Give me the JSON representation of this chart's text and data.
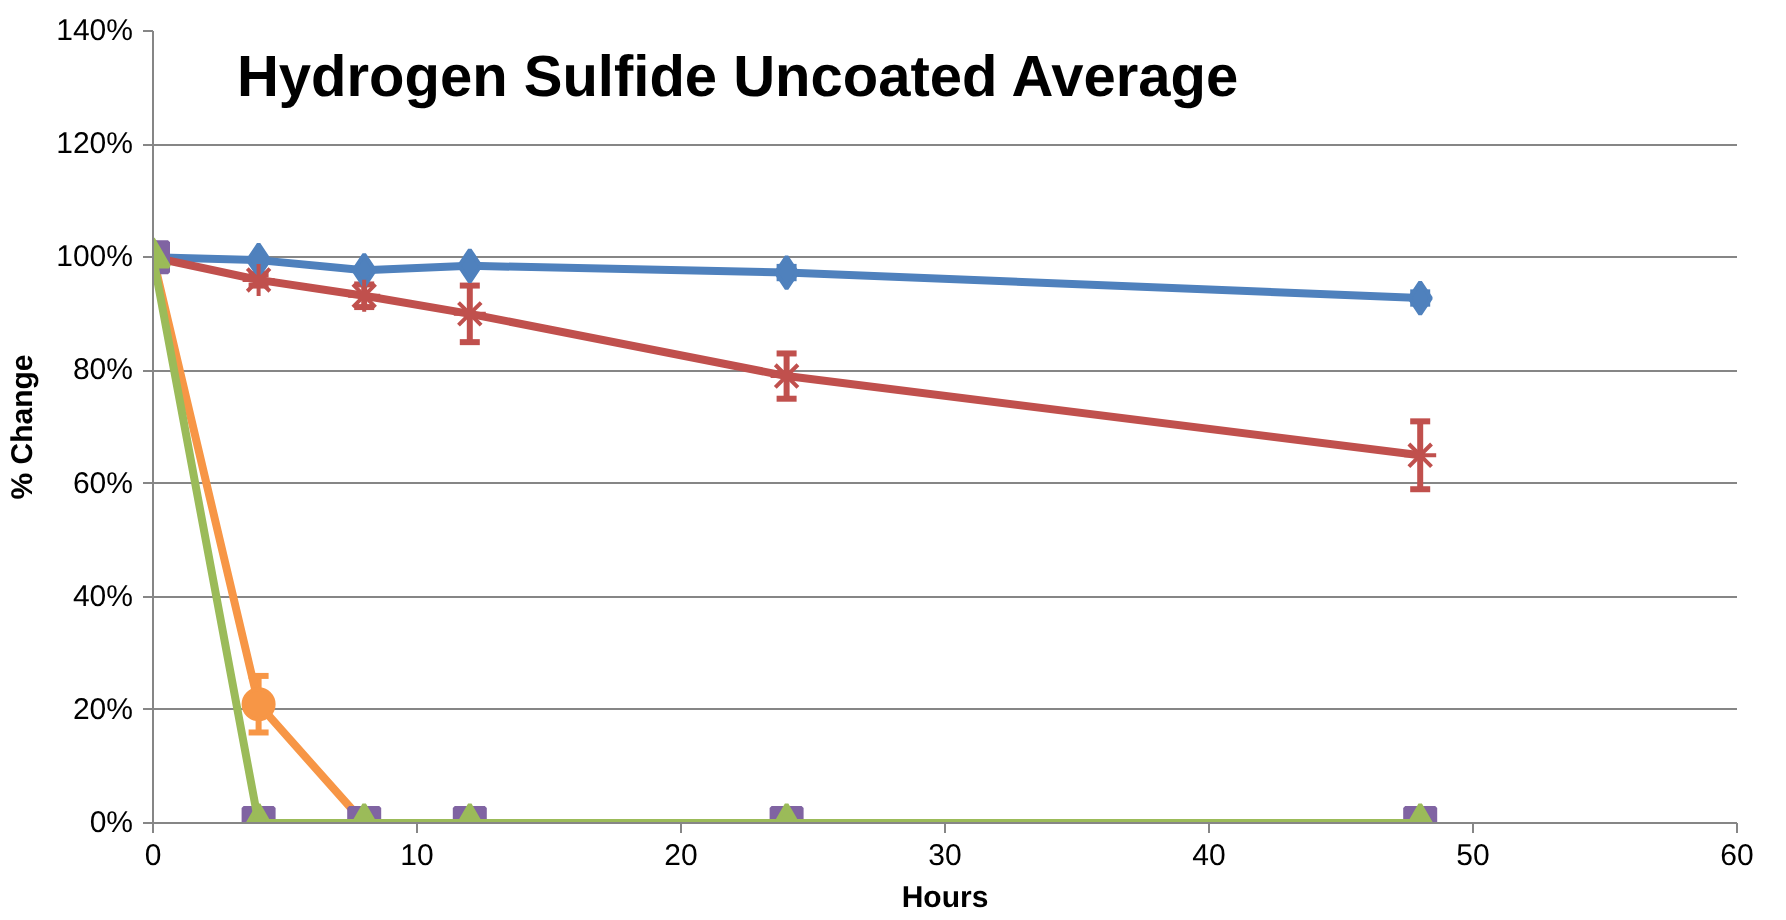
{
  "chart_data": {
    "type": "line",
    "title": "Hydrogen Sulfide Uncoated Average",
    "xlabel": "Hours",
    "ylabel": "% Change",
    "x": [
      0,
      4,
      8,
      12,
      24,
      48
    ],
    "series": [
      {
        "color": "#4f81bd",
        "marker": "diamond",
        "values": [
          100,
          99.5,
          97.7,
          98.5,
          97.3,
          92.8
        ],
        "errors": [
          null,
          null,
          null,
          null,
          1,
          1
        ]
      },
      {
        "color": "#c0504d",
        "marker": "cross",
        "values": [
          100,
          96,
          93.2,
          90,
          79,
          65
        ],
        "errors": [
          null,
          1,
          2,
          5,
          4,
          6
        ]
      },
      {
        "color": "#f79646",
        "marker": "circle",
        "values": [
          100,
          21,
          0,
          null,
          null,
          null
        ],
        "errors": [
          null,
          5,
          null,
          null,
          null,
          null
        ]
      },
      {
        "type": "scatter",
        "color": "#8064a2",
        "marker": "square",
        "values": [
          100,
          0,
          0,
          0,
          0,
          0
        ]
      },
      {
        "color": "#9bbb59",
        "marker": "triangle",
        "values": [
          100,
          0,
          0,
          0,
          0,
          0
        ]
      }
    ],
    "xlim": [
      0,
      60
    ],
    "xticks": [
      0,
      10,
      20,
      30,
      40,
      50,
      60
    ],
    "ylim": [
      0,
      140
    ],
    "yticks": [
      {
        "value": 0,
        "label": "0%"
      },
      {
        "value": 20,
        "label": "20%"
      },
      {
        "value": 40,
        "label": "40%"
      },
      {
        "value": 60,
        "label": "60%"
      },
      {
        "value": 80,
        "label": "80%"
      },
      {
        "value": 100,
        "label": "100%"
      },
      {
        "value": 120,
        "label": "120%"
      },
      {
        "value": 140,
        "label": "140%"
      }
    ],
    "grid": "y"
  }
}
